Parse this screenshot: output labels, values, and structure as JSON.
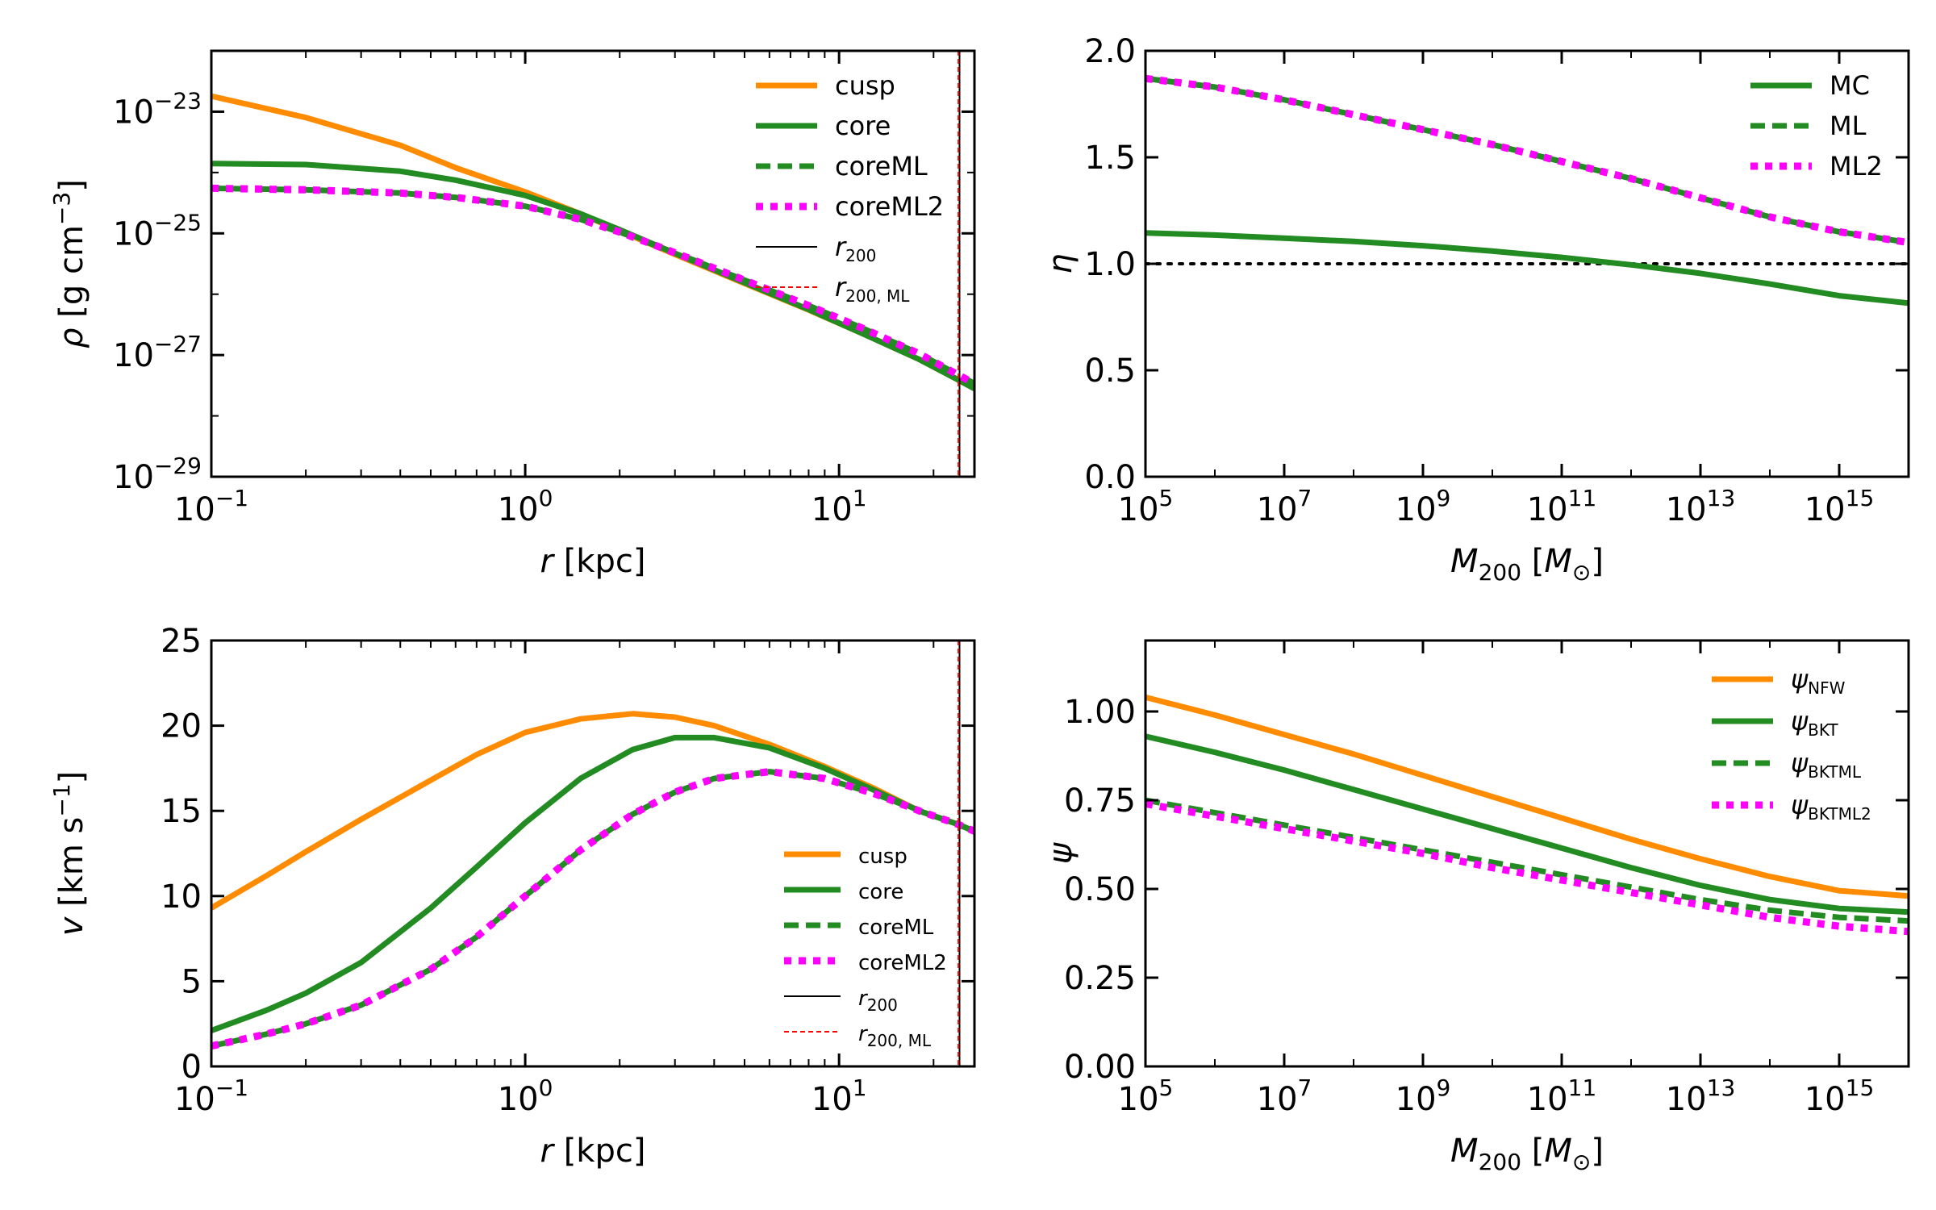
{
  "colors": {
    "orange": "#ff8c00",
    "green": "#228b22",
    "magenta": "#ff00ff",
    "black": "#000000",
    "red": "#ff0000"
  },
  "chart_data": [
    {
      "id": "density",
      "type": "line",
      "xscale": "log",
      "yscale": "log",
      "xlim": [
        0.1,
        27
      ],
      "ylim": [
        1e-29,
        1e-22
      ],
      "xlabel": {
        "sym": "r",
        "unit": " [kpc]"
      },
      "ylabel": {
        "sym": "ρ",
        "unit": " [g cm",
        "sup": "−3",
        "close": "]"
      },
      "xticks": [
        {
          "value": 0.1,
          "base": "10",
          "exp": "−1"
        },
        {
          "value": 1,
          "base": "10",
          "exp": "0"
        },
        {
          "value": 10,
          "base": "10",
          "exp": "1"
        }
      ],
      "yticks": [
        {
          "value": 1e-23,
          "base": "10",
          "exp": "−23"
        },
        {
          "value": 1e-25,
          "base": "10",
          "exp": "−25"
        },
        {
          "value": 1e-27,
          "base": "10",
          "exp": "−27"
        },
        {
          "value": 1e-29,
          "base": "10",
          "exp": "−29"
        }
      ],
      "legend_position": "top-right",
      "series": [
        {
          "name": "cusp",
          "label": "cusp",
          "color": "orange",
          "style": "solid",
          "x": [
            0.1,
            0.2,
            0.4,
            0.6,
            1.0,
            1.5,
            2,
            3,
            5,
            8,
            12,
            18,
            24,
            27
          ],
          "y": [
            1.8e-23,
            8e-24,
            2.8e-24,
            1.2e-24,
            4.8e-25,
            2.1e-25,
            1.1e-25,
            4.5e-26,
            1.5e-26,
            5.5e-27,
            2.2e-27,
            8.5e-28,
            3.9e-28,
            2.8e-28
          ]
        },
        {
          "name": "core",
          "label": "core",
          "color": "green",
          "style": "solid",
          "x": [
            0.1,
            0.2,
            0.4,
            0.6,
            1.0,
            1.5,
            2,
            3,
            5,
            8,
            12,
            18,
            24,
            27
          ],
          "y": [
            1.4e-24,
            1.35e-24,
            1.05e-24,
            7.5e-25,
            4.2e-25,
            2.1e-25,
            1.15e-25,
            4.7e-26,
            1.55e-26,
            5.6e-27,
            2.2e-27,
            8.5e-28,
            3.9e-28,
            2.8e-28
          ]
        },
        {
          "name": "coreML",
          "label": "coreML",
          "color": "green",
          "style": "dashed",
          "x": [
            0.1,
            0.2,
            0.4,
            0.6,
            1.0,
            1.5,
            2,
            3,
            5,
            8,
            12,
            18,
            24,
            27
          ],
          "y": [
            5.5e-25,
            5.2e-25,
            4.6e-25,
            3.9e-25,
            2.8e-25,
            1.7e-25,
            1.05e-25,
            4.8e-26,
            1.7e-26,
            6.5e-27,
            2.7e-27,
            1.05e-27,
            4.7e-28,
            3.4e-28
          ]
        },
        {
          "name": "coreML2",
          "label": "coreML2",
          "color": "magenta",
          "style": "dotted",
          "x": [
            0.1,
            0.2,
            0.4,
            0.6,
            1.0,
            1.5,
            2,
            3,
            5,
            8,
            12,
            18,
            24,
            27
          ],
          "y": [
            5.5e-25,
            5.2e-25,
            4.6e-25,
            3.9e-25,
            2.8e-25,
            1.7e-25,
            1.05e-25,
            4.8e-26,
            1.7e-26,
            6.5e-27,
            2.7e-27,
            1.05e-27,
            4.7e-28,
            3.4e-28
          ]
        }
      ],
      "vlines": [
        {
          "name": "r200",
          "sym": "r",
          "sub": "200",
          "x": 24.2,
          "color": "black",
          "style": "solid"
        },
        {
          "name": "r200ML",
          "sym": "r",
          "sub": "200, ML",
          "x": 24.0,
          "color": "red",
          "style": "dashed"
        }
      ]
    },
    {
      "id": "eta",
      "type": "line",
      "xscale": "log",
      "yscale": "linear",
      "xlim": [
        100000.0,
        1e+16
      ],
      "ylim": [
        0.0,
        2.0
      ],
      "xlabel": {
        "sym": "M",
        "sub": "200",
        "unit": " [",
        "sym2": "M",
        "sub2": "⊙",
        "close": "]"
      },
      "ylabel": {
        "sym": "η"
      },
      "xticks": [
        {
          "value": 100000.0,
          "base": "10",
          "exp": "5"
        },
        {
          "value": 10000000.0,
          "base": "10",
          "exp": "7"
        },
        {
          "value": 1000000000.0,
          "base": "10",
          "exp": "9"
        },
        {
          "value": 100000000000.0,
          "base": "10",
          "exp": "11"
        },
        {
          "value": 10000000000000.0,
          "base": "10",
          "exp": "13"
        },
        {
          "value": 1000000000000000.0,
          "base": "10",
          "exp": "15"
        }
      ],
      "yticks": [
        {
          "value": 0.0,
          "text": "0.0"
        },
        {
          "value": 0.5,
          "text": "0.5"
        },
        {
          "value": 1.0,
          "text": "1.0"
        },
        {
          "value": 1.5,
          "text": "1.5"
        },
        {
          "value": 2.0,
          "text": "2.0"
        }
      ],
      "legend_position": "top-right",
      "hline": {
        "y": 1.0,
        "color": "black",
        "style": "dotted"
      },
      "series": [
        {
          "name": "MC",
          "label": "MC",
          "color": "green",
          "style": "solid",
          "x": [
            100000.0,
            1000000.0,
            10000000.0,
            100000000.0,
            1000000000.0,
            10000000000.0,
            100000000000.0,
            1000000000000.0,
            10000000000000.0,
            100000000000000.0,
            1000000000000000.0,
            1e+16
          ],
          "y": [
            1.145,
            1.135,
            1.12,
            1.105,
            1.085,
            1.06,
            1.03,
            0.995,
            0.955,
            0.905,
            0.85,
            0.815
          ]
        },
        {
          "name": "ML",
          "label": "ML",
          "color": "green",
          "style": "dashed",
          "x": [
            100000.0,
            1000000.0,
            10000000.0,
            100000000.0,
            1000000000.0,
            10000000000.0,
            100000000000.0,
            1000000000000.0,
            10000000000000.0,
            100000000000000.0,
            1000000000000000.0,
            1e+16
          ],
          "y": [
            1.87,
            1.83,
            1.77,
            1.7,
            1.63,
            1.56,
            1.48,
            1.4,
            1.31,
            1.22,
            1.15,
            1.1
          ]
        },
        {
          "name": "ML2",
          "label": "ML2",
          "color": "magenta",
          "style": "dotted",
          "x": [
            100000.0,
            1000000.0,
            10000000.0,
            100000000.0,
            1000000000.0,
            10000000000.0,
            100000000000.0,
            1000000000000.0,
            10000000000000.0,
            100000000000000.0,
            1000000000000000.0,
            1e+16
          ],
          "y": [
            1.87,
            1.83,
            1.77,
            1.7,
            1.63,
            1.56,
            1.48,
            1.4,
            1.31,
            1.22,
            1.15,
            1.1
          ]
        }
      ]
    },
    {
      "id": "velocity",
      "type": "line",
      "xscale": "log",
      "yscale": "linear",
      "xlim": [
        0.1,
        27
      ],
      "ylim": [
        0,
        25
      ],
      "xlabel": {
        "sym": "r",
        "unit": " [kpc]"
      },
      "ylabel": {
        "sym": "v",
        "unit": " [km s",
        "sup": "−1",
        "close": "]"
      },
      "xticks": [
        {
          "value": 0.1,
          "base": "10",
          "exp": "−1"
        },
        {
          "value": 1,
          "base": "10",
          "exp": "0"
        },
        {
          "value": 10,
          "base": "10",
          "exp": "1"
        }
      ],
      "yticks": [
        {
          "value": 0,
          "text": "0"
        },
        {
          "value": 5,
          "text": "5"
        },
        {
          "value": 10,
          "text": "10"
        },
        {
          "value": 15,
          "text": "15"
        },
        {
          "value": 20,
          "text": "20"
        },
        {
          "value": 25,
          "text": "25"
        }
      ],
      "legend_position": "center-right",
      "series": [
        {
          "name": "cusp",
          "label": "cusp",
          "color": "orange",
          "style": "solid",
          "x": [
            0.1,
            0.15,
            0.2,
            0.3,
            0.5,
            0.7,
            1.0,
            1.5,
            2.2,
            3,
            4,
            6,
            9,
            13,
            18,
            24,
            27
          ],
          "y": [
            9.3,
            11.2,
            12.6,
            14.5,
            16.8,
            18.3,
            19.6,
            20.4,
            20.7,
            20.5,
            20.0,
            18.9,
            17.6,
            16.3,
            15.0,
            14.2,
            13.8
          ]
        },
        {
          "name": "core",
          "label": "core",
          "color": "green",
          "style": "solid",
          "x": [
            0.1,
            0.15,
            0.2,
            0.3,
            0.5,
            0.7,
            1.0,
            1.5,
            2.2,
            3,
            4,
            6,
            9,
            13,
            18,
            24,
            27
          ],
          "y": [
            2.1,
            3.3,
            4.3,
            6.1,
            9.3,
            11.7,
            14.3,
            16.9,
            18.6,
            19.3,
            19.3,
            18.7,
            17.5,
            16.2,
            15.0,
            14.2,
            13.8
          ]
        },
        {
          "name": "coreML",
          "label": "coreML",
          "color": "green",
          "style": "dashed",
          "x": [
            0.1,
            0.15,
            0.2,
            0.3,
            0.5,
            0.7,
            1.0,
            1.5,
            2.2,
            3,
            4,
            6,
            9,
            13,
            18,
            24,
            27
          ],
          "y": [
            1.2,
            1.9,
            2.5,
            3.6,
            5.7,
            7.6,
            10.0,
            12.7,
            14.8,
            16.1,
            16.9,
            17.3,
            16.9,
            16.0,
            15.0,
            14.2,
            13.8
          ]
        },
        {
          "name": "coreML2",
          "label": "coreML2",
          "color": "magenta",
          "style": "dotted",
          "x": [
            0.1,
            0.15,
            0.2,
            0.3,
            0.5,
            0.7,
            1.0,
            1.5,
            2.2,
            3,
            4,
            6,
            9,
            13,
            18,
            24,
            27
          ],
          "y": [
            1.2,
            1.9,
            2.5,
            3.6,
            5.7,
            7.6,
            10.0,
            12.7,
            14.8,
            16.1,
            16.9,
            17.3,
            16.9,
            16.0,
            15.0,
            14.2,
            13.8
          ]
        }
      ],
      "vlines": [
        {
          "name": "r200",
          "sym": "r",
          "sub": "200",
          "x": 24.2,
          "color": "black",
          "style": "solid"
        },
        {
          "name": "r200ML",
          "sym": "r",
          "sub": "200, ML",
          "x": 24.0,
          "color": "red",
          "style": "dashed"
        }
      ]
    },
    {
      "id": "psi",
      "type": "line",
      "xscale": "log",
      "yscale": "linear",
      "xlim": [
        100000.0,
        1e+16
      ],
      "ylim": [
        0.0,
        1.2
      ],
      "xlabel": {
        "sym": "M",
        "sub": "200",
        "unit": " [",
        "sym2": "M",
        "sub2": "⊙",
        "close": "]"
      },
      "ylabel": {
        "sym": "ψ"
      },
      "xticks": [
        {
          "value": 100000.0,
          "base": "10",
          "exp": "5"
        },
        {
          "value": 10000000.0,
          "base": "10",
          "exp": "7"
        },
        {
          "value": 1000000000.0,
          "base": "10",
          "exp": "9"
        },
        {
          "value": 100000000000.0,
          "base": "10",
          "exp": "11"
        },
        {
          "value": 10000000000000.0,
          "base": "10",
          "exp": "13"
        },
        {
          "value": 1000000000000000.0,
          "base": "10",
          "exp": "15"
        }
      ],
      "yticks": [
        {
          "value": 0.0,
          "text": "0.00"
        },
        {
          "value": 0.25,
          "text": "0.25"
        },
        {
          "value": 0.5,
          "text": "0.50"
        },
        {
          "value": 0.75,
          "text": "0.75"
        },
        {
          "value": 1.0,
          "text": "1.00"
        }
      ],
      "legend_position": "top-right",
      "series": [
        {
          "name": "psiNFW",
          "sym": "ψ",
          "sub": "NFW",
          "color": "orange",
          "style": "solid",
          "x": [
            100000.0,
            1000000.0,
            10000000.0,
            100000000.0,
            1000000000.0,
            10000000000.0,
            100000000000.0,
            1000000000000.0,
            10000000000000.0,
            100000000000000.0,
            1000000000000000.0,
            1e+16
          ],
          "y": [
            1.04,
            0.99,
            0.935,
            0.88,
            0.82,
            0.76,
            0.7,
            0.64,
            0.585,
            0.535,
            0.495,
            0.48
          ]
        },
        {
          "name": "psiBKT",
          "sym": "ψ",
          "sub": "BKT",
          "color": "green",
          "style": "solid",
          "x": [
            100000.0,
            1000000.0,
            10000000.0,
            100000000.0,
            1000000000.0,
            10000000000.0,
            100000000000.0,
            1000000000000.0,
            10000000000000.0,
            100000000000000.0,
            1000000000000000.0,
            1e+16
          ],
          "y": [
            0.93,
            0.885,
            0.835,
            0.78,
            0.725,
            0.67,
            0.615,
            0.56,
            0.51,
            0.47,
            0.445,
            0.435
          ]
        },
        {
          "name": "psiBKTML",
          "sym": "ψ",
          "sub": "BKTML",
          "color": "green",
          "style": "dashed",
          "x": [
            100000.0,
            1000000.0,
            10000000.0,
            100000000.0,
            1000000000.0,
            10000000000.0,
            100000000000.0,
            1000000000000.0,
            10000000000000.0,
            100000000000000.0,
            1000000000000000.0,
            1e+16
          ],
          "y": [
            0.75,
            0.715,
            0.68,
            0.645,
            0.61,
            0.575,
            0.54,
            0.505,
            0.47,
            0.44,
            0.42,
            0.41
          ]
        },
        {
          "name": "psiBKTML2",
          "sym": "ψ",
          "sub": "BKTML2",
          "color": "magenta",
          "style": "dotted",
          "x": [
            100000.0,
            1000000.0,
            10000000.0,
            100000000.0,
            1000000000.0,
            10000000000.0,
            100000000000.0,
            1000000000000.0,
            10000000000000.0,
            100000000000000.0,
            1000000000000000.0,
            1e+16
          ],
          "y": [
            0.74,
            0.705,
            0.67,
            0.635,
            0.6,
            0.56,
            0.525,
            0.49,
            0.455,
            0.42,
            0.395,
            0.38
          ]
        }
      ]
    }
  ]
}
